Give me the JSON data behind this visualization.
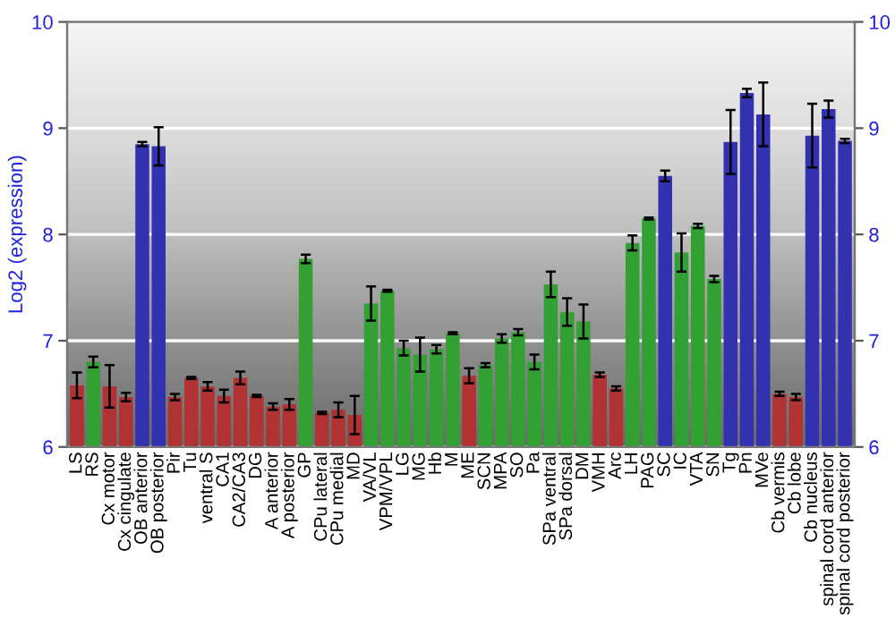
{
  "chart_data": {
    "type": "bar",
    "ylabel": "Log2 (expression)",
    "categories": [
      "LS",
      "RS",
      "Cx motor",
      "Cx cingulate",
      "OB anterior",
      "OB posterior",
      "Pir",
      "Tu",
      "ventral S",
      "CA1",
      "CA2/CA3",
      "DG",
      "A anterior",
      "A posterior",
      "GP",
      "CPu lateral",
      "CPu medial",
      "MD",
      "VA/VL",
      "VPM/VPL",
      "LG",
      "MG",
      "Hb",
      "M",
      "ME",
      "SCN",
      "MPA",
      "SO",
      "Pa",
      "SPa ventral",
      "SPa dorsal",
      "DM",
      "VMH",
      "Arc",
      "LH",
      "PAG",
      "SC",
      "IC",
      "VTA",
      "SN",
      "Tg",
      "Pn",
      "MVe",
      "Cb vermis",
      "Cb lobe",
      "Cb nucleus",
      "spinal cord anterior",
      "spinal cord posterior"
    ],
    "values": [
      6.58,
      6.8,
      6.57,
      6.47,
      8.85,
      8.83,
      6.47,
      6.65,
      6.57,
      6.48,
      6.65,
      6.48,
      6.38,
      6.4,
      7.77,
      6.32,
      6.35,
      6.3,
      7.35,
      7.47,
      6.93,
      6.87,
      6.92,
      7.07,
      6.67,
      6.77,
      7.02,
      7.08,
      6.8,
      7.53,
      7.27,
      7.18,
      6.68,
      6.55,
      7.92,
      8.15,
      8.55,
      7.83,
      8.08,
      7.58,
      8.87,
      9.33,
      9.13,
      6.5,
      6.47,
      8.93,
      9.18,
      8.88
    ],
    "errors": [
      0.12,
      0.05,
      0.2,
      0.04,
      0.02,
      0.18,
      0.03,
      0.01,
      0.04,
      0.06,
      0.06,
      0.01,
      0.03,
      0.05,
      0.04,
      0.01,
      0.07,
      0.18,
      0.16,
      0.01,
      0.07,
      0.16,
      0.04,
      0.01,
      0.07,
      0.02,
      0.04,
      0.03,
      0.07,
      0.12,
      0.13,
      0.16,
      0.02,
      0.02,
      0.07,
      0.01,
      0.05,
      0.18,
      0.02,
      0.03,
      0.3,
      0.04,
      0.3,
      0.02,
      0.03,
      0.3,
      0.08,
      0.02
    ],
    "colors": [
      "#b03232",
      "#32a032",
      "#b03232",
      "#b03232",
      "#3232b0",
      "#3232b0",
      "#b03232",
      "#b03232",
      "#b03232",
      "#b03232",
      "#b03232",
      "#b03232",
      "#b03232",
      "#b03232",
      "#32a032",
      "#b03232",
      "#b03232",
      "#b03232",
      "#32a032",
      "#32a032",
      "#32a032",
      "#32a032",
      "#32a032",
      "#32a032",
      "#b03232",
      "#32a032",
      "#32a032",
      "#32a032",
      "#32a032",
      "#32a032",
      "#32a032",
      "#32a032",
      "#b03232",
      "#b03232",
      "#32a032",
      "#32a032",
      "#3232b0",
      "#32a032",
      "#32a032",
      "#32a032",
      "#3232b0",
      "#3232b0",
      "#3232b0",
      "#b03232",
      "#b03232",
      "#3232b0",
      "#3232b0",
      "#3232b0"
    ],
    "ylim": [
      6,
      10
    ],
    "yticks": [
      6,
      7,
      8,
      9,
      10
    ],
    "y2lim": [
      6,
      10
    ],
    "y2ticks": [
      6,
      7,
      8,
      9,
      10
    ],
    "grid": "y"
  }
}
